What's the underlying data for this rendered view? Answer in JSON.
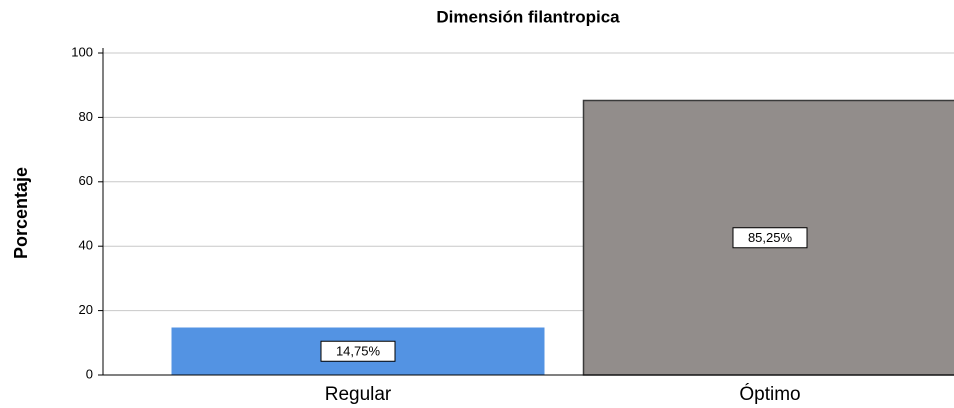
{
  "chart_data": {
    "type": "bar",
    "title": "Dimensión filantropica",
    "ylabel": "Porcentaje",
    "categories": [
      "Regular",
      "Óptimo"
    ],
    "values": [
      14.75,
      85.25
    ],
    "value_labels": [
      "14,75%",
      "85,25%"
    ],
    "colors": [
      "#5393e3",
      "#928d8b"
    ],
    "ylim": [
      0,
      100
    ],
    "yticks": [
      0,
      20,
      40,
      60,
      80,
      100
    ],
    "grid": true
  }
}
